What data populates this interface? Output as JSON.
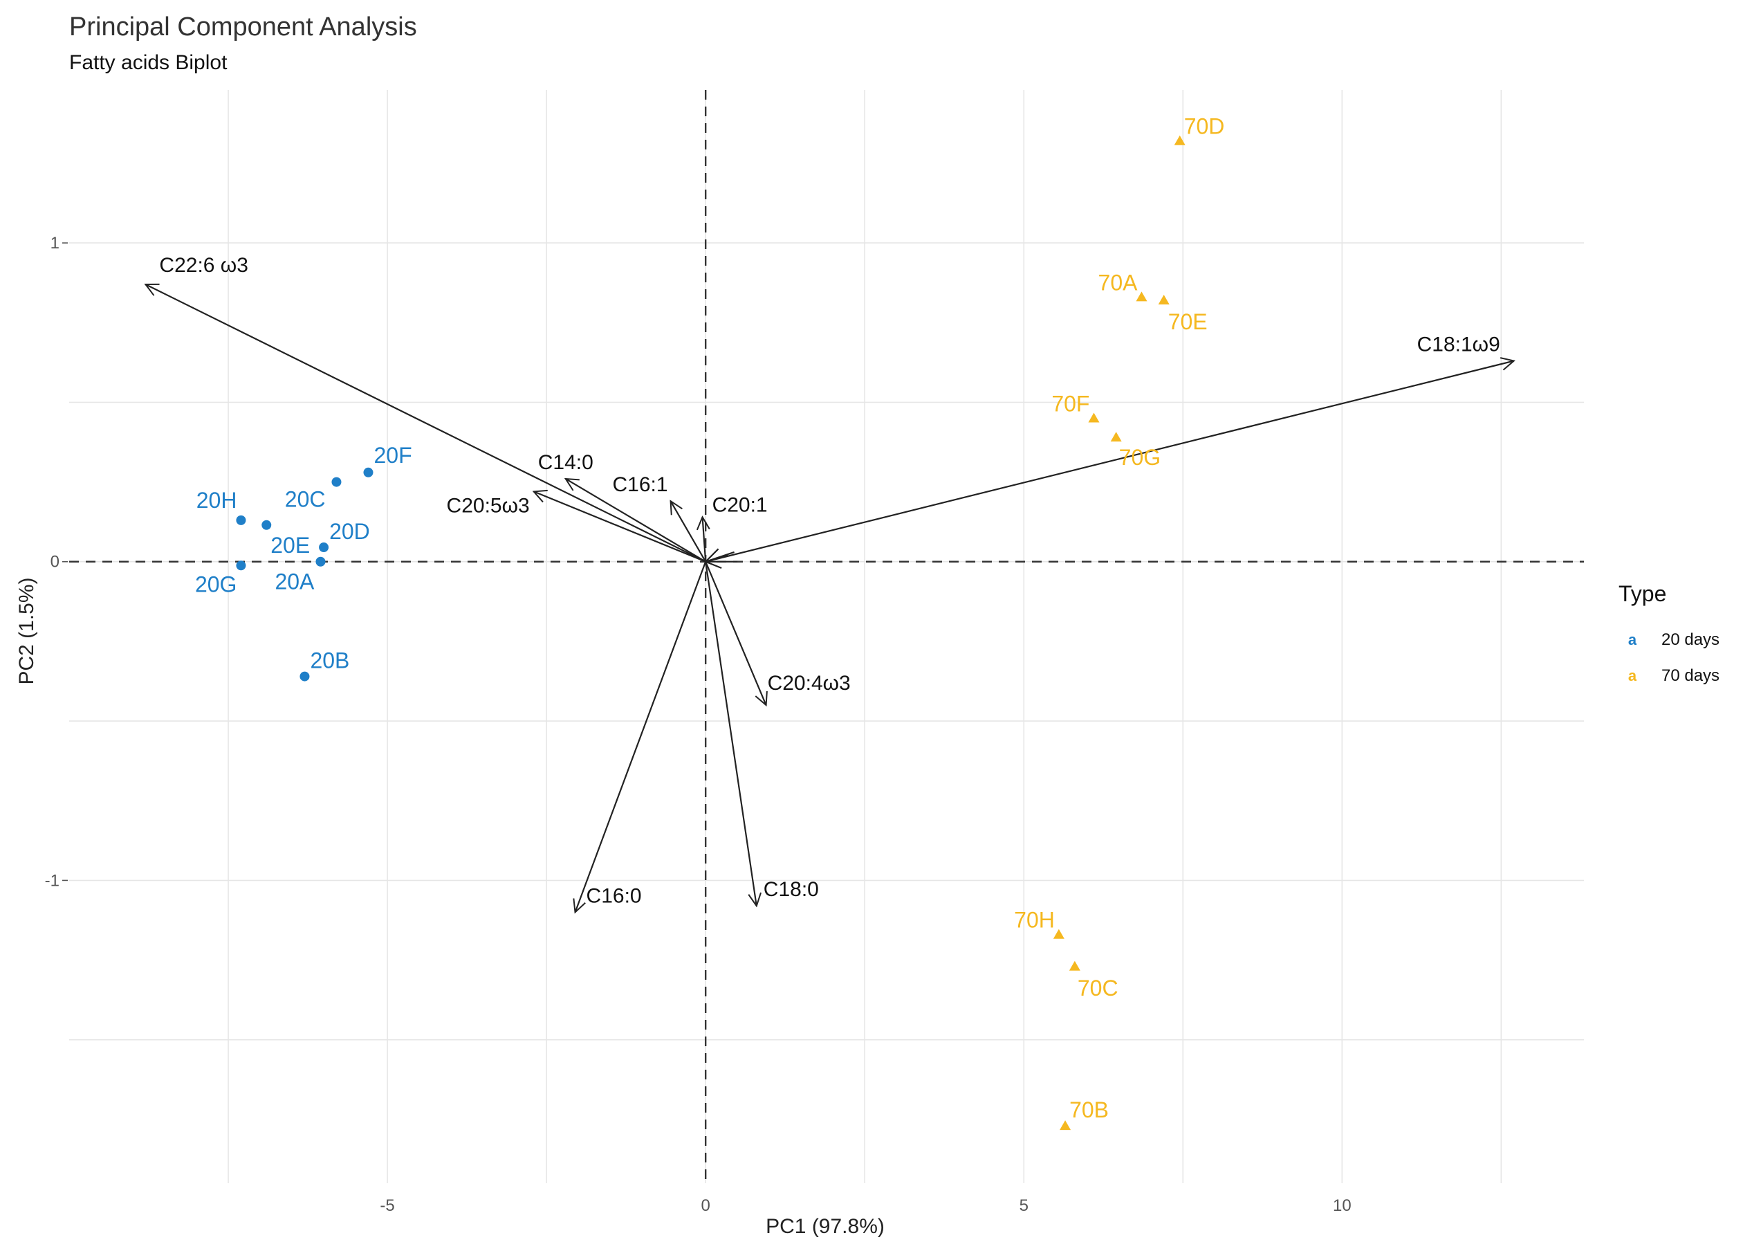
{
  "chart_data": {
    "type": "scatter",
    "title": "Principal Component Analysis",
    "subtitle": "Fatty acids Biplot",
    "xlabel": "PC1 (97.8%)",
    "ylabel": "PC2 (1.5%)",
    "xlim": [
      -10,
      13.8
    ],
    "ylim": [
      -1.95,
      1.48
    ],
    "x_ticks": [
      -5,
      0,
      5,
      10
    ],
    "y_ticks": [
      -1,
      0,
      1
    ],
    "x_tick_labels": [
      "-5",
      "0",
      "5",
      "10"
    ],
    "y_tick_labels": [
      "-1",
      "0",
      "1"
    ],
    "grid": true,
    "reference_lines": {
      "x": 0,
      "y": 0,
      "style": "dashed"
    },
    "series": [
      {
        "name": "20 days",
        "color": "#1f7fc8",
        "shape": "circle",
        "points": [
          {
            "label": "20F",
            "x": -5.3,
            "y": 0.28
          },
          {
            "label": "20C",
            "x": -5.8,
            "y": 0.25
          },
          {
            "label": "20H",
            "x": -7.3,
            "y": 0.13
          },
          {
            "label": "20E",
            "x": -6.9,
            "y": 0.115
          },
          {
            "label": "20D",
            "x": -6.0,
            "y": 0.045
          },
          {
            "label": "20A",
            "x": -6.05,
            "y": 0.0
          },
          {
            "label": "20G",
            "x": -7.3,
            "y": -0.012
          },
          {
            "label": "20B",
            "x": -6.3,
            "y": -0.36
          }
        ]
      },
      {
        "name": "70 days",
        "color": "#f5b820",
        "shape": "triangle",
        "points": [
          {
            "label": "70D",
            "x": 7.45,
            "y": 1.32
          },
          {
            "label": "70A",
            "x": 6.85,
            "y": 0.83
          },
          {
            "label": "70E",
            "x": 7.2,
            "y": 0.82
          },
          {
            "label": "70F",
            "x": 6.1,
            "y": 0.45
          },
          {
            "label": "70G",
            "x": 6.45,
            "y": 0.39
          },
          {
            "label": "70H",
            "x": 5.55,
            "y": -1.17
          },
          {
            "label": "70C",
            "x": 5.8,
            "y": -1.27
          },
          {
            "label": "70B",
            "x": 5.65,
            "y": -1.77
          }
        ]
      }
    ],
    "loadings": [
      {
        "label": "C22:6 ω3",
        "x": -8.8,
        "y": 0.87
      },
      {
        "label": "C18:1ω9",
        "x": 12.7,
        "y": 0.63
      },
      {
        "label": "C14:0",
        "x": -2.2,
        "y": 0.26
      },
      {
        "label": "C20:5ω3",
        "x": -2.7,
        "y": 0.22
      },
      {
        "label": "C16:1",
        "x": -0.55,
        "y": 0.19
      },
      {
        "label": "C20:1",
        "x": -0.05,
        "y": 0.14
      },
      {
        "label": "C20:4ω3",
        "x": 0.95,
        "y": -0.45
      },
      {
        "label": "C16:0",
        "x": -2.05,
        "y": -1.1
      },
      {
        "label": "C18:0",
        "x": 0.8,
        "y": -1.08
      }
    ],
    "legend": {
      "title": "Type",
      "position": "right",
      "key_glyph": "a"
    }
  }
}
